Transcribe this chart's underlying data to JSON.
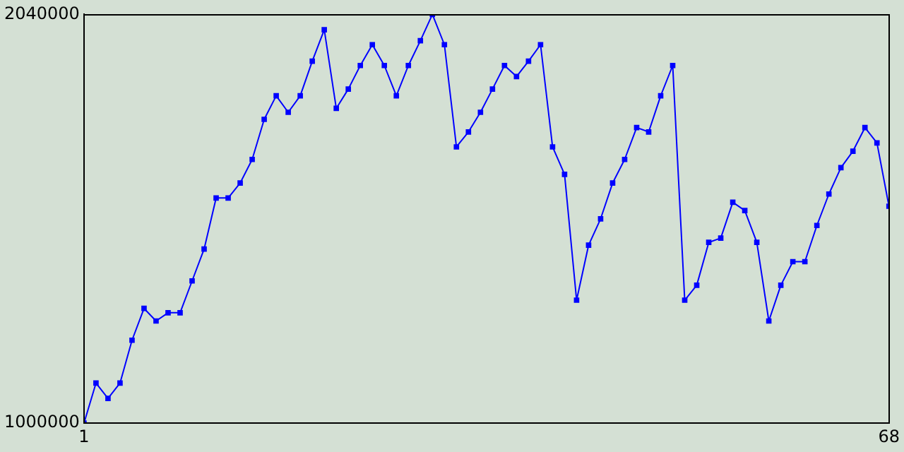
{
  "chart_data": {
    "type": "line",
    "x": [
      1,
      2,
      3,
      4,
      5,
      6,
      7,
      8,
      9,
      10,
      11,
      12,
      13,
      14,
      15,
      16,
      17,
      18,
      19,
      20,
      21,
      22,
      23,
      24,
      25,
      26,
      27,
      28,
      29,
      30,
      31,
      32,
      33,
      34,
      35,
      36,
      37,
      38,
      39,
      40,
      41,
      42,
      43,
      44,
      45,
      46,
      47,
      48,
      49,
      50,
      51,
      52,
      53,
      54,
      55,
      56,
      57,
      58,
      59,
      60,
      61,
      62,
      63,
      64,
      65,
      66,
      67,
      68
    ],
    "series": [
      {
        "color": "#0000ff",
        "values": [
          1000000,
          1102000,
          1063000,
          1102000,
          1211000,
          1292000,
          1260000,
          1281000,
          1281000,
          1362000,
          1443000,
          1573000,
          1573000,
          1611000,
          1671000,
          1773000,
          1833000,
          1791000,
          1833000,
          1921000,
          2001000,
          1801000,
          1850000,
          1910000,
          1963000,
          1910000,
          1833000,
          1910000,
          1973000,
          2040000,
          1963000,
          1703000,
          1741000,
          1791000,
          1850000,
          1910000,
          1882000,
          1921000,
          1963000,
          1703000,
          1633000,
          1313000,
          1453000,
          1520000,
          1611000,
          1671000,
          1752000,
          1741000,
          1833000,
          1910000,
          1313000,
          1351000,
          1460000,
          1471000,
          1562000,
          1541000,
          1460000,
          1260000,
          1351000,
          1411000,
          1411000,
          1503000,
          1583000,
          1650000,
          1692000,
          1752000,
          1713000,
          1552000
        ]
      }
    ],
    "xlim": [
      1,
      68
    ],
    "xticks": [
      1,
      68
    ],
    "ylim": [
      1000000,
      2040000
    ],
    "yticks": [
      1000000,
      2040000
    ],
    "grid": false,
    "legend": false,
    "marker": "square",
    "line_style": "solid"
  }
}
